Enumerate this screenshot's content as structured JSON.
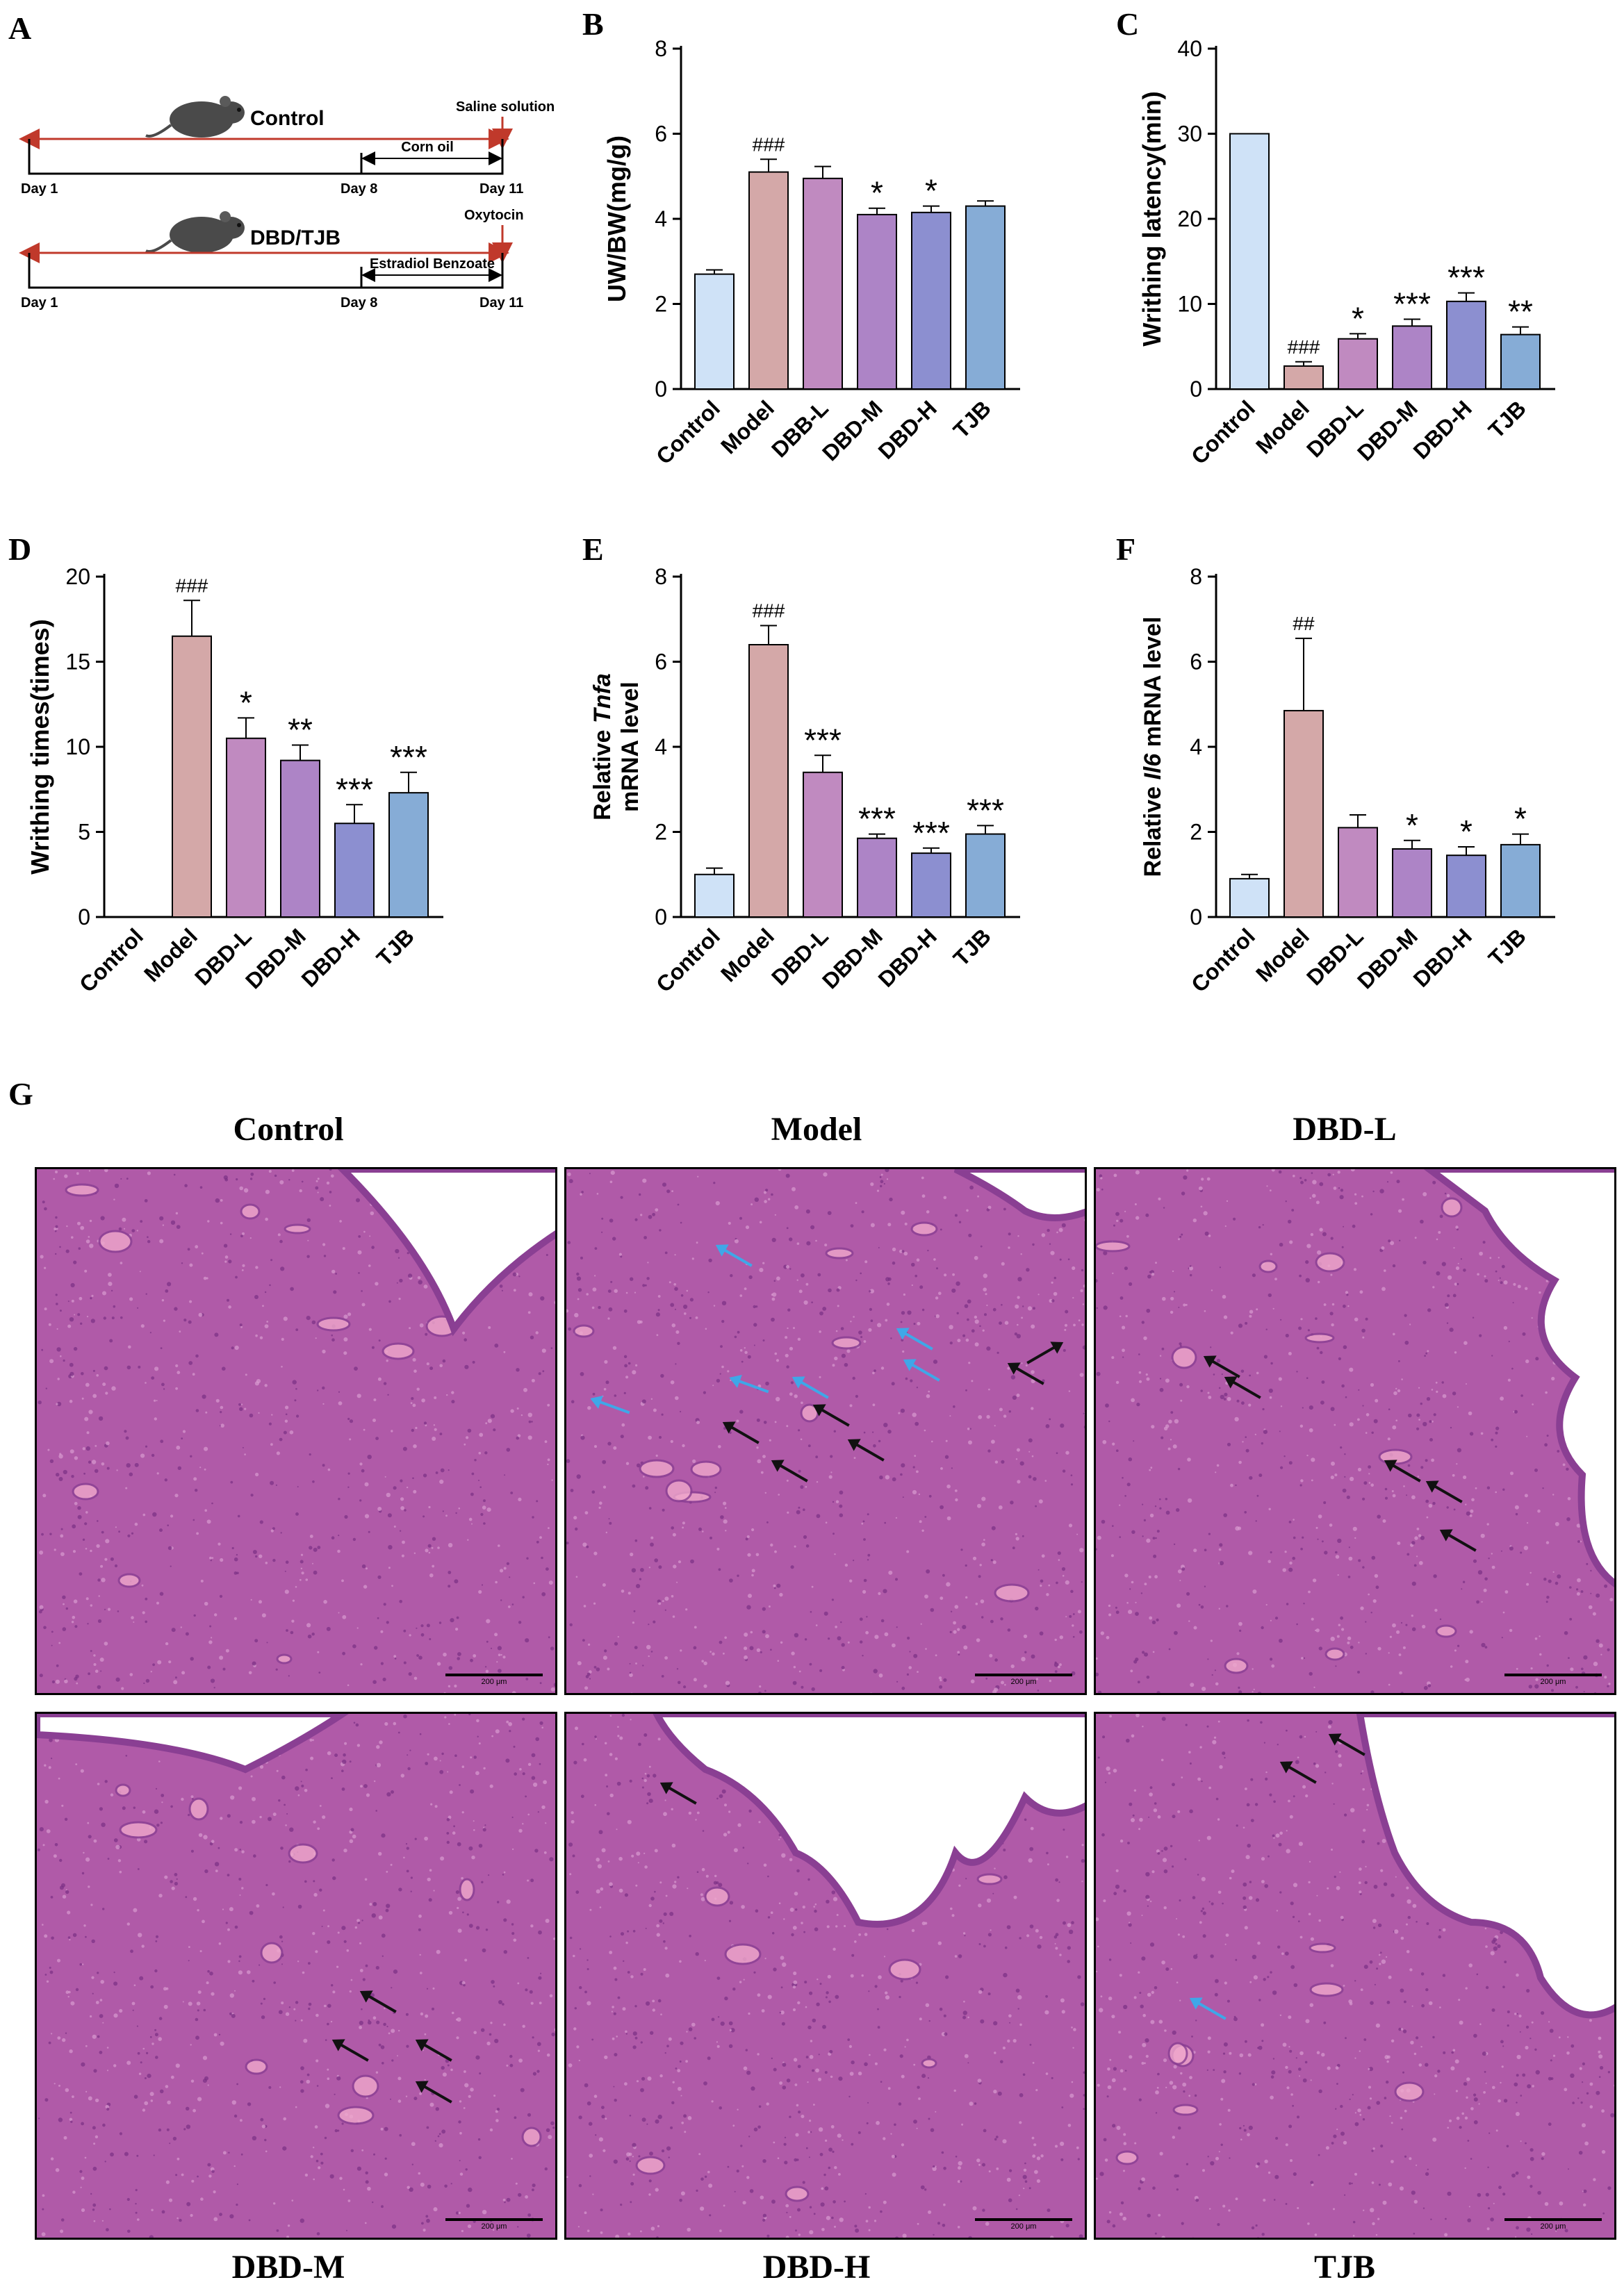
{
  "panels": {
    "A": "A",
    "B": "B",
    "C": "C",
    "D": "D",
    "E": "E",
    "F": "F",
    "G": "G"
  },
  "timeline": {
    "control": {
      "group": "Control",
      "top_label": "Saline solution",
      "treatment": "Corn oil",
      "day_start": "Day 1",
      "day_mid": "Day 8",
      "day_end": "Day 11"
    },
    "dbd": {
      "group": "DBD/TJB",
      "top_label": "Oxytocin",
      "treatment": "Estradiol Benzoate",
      "day_start": "Day 1",
      "day_mid": "Day 8",
      "day_end": "Day 11"
    },
    "colors": {
      "arrow": "#c0392b",
      "line": "#000000"
    }
  },
  "bar_colors": [
    "#cfe2f7",
    "#d4a8a8",
    "#c08ac0",
    "#ad84c6",
    "#8c8fd0",
    "#86acd6"
  ],
  "chart_data": [
    {
      "id": "B",
      "type": "bar",
      "categories": [
        "Control",
        "Model",
        "DBB-L",
        "DBD-M",
        "DBD-H",
        "TJB"
      ],
      "values": [
        2.7,
        5.1,
        4.95,
        4.1,
        4.15,
        4.3
      ],
      "errors": [
        0.1,
        0.3,
        0.28,
        0.15,
        0.15,
        0.12
      ],
      "annotations": [
        "",
        "###",
        "",
        "*",
        "*",
        ""
      ],
      "ylabel": "UW/BW(mg/g)",
      "ylim": [
        0,
        8
      ],
      "yticks": [
        0,
        2,
        4,
        6,
        8
      ]
    },
    {
      "id": "C",
      "type": "bar",
      "categories": [
        "Control",
        "Model",
        "DBD-L",
        "DBD-M",
        "DBD-H",
        "TJB"
      ],
      "values": [
        30,
        2.7,
        5.9,
        7.4,
        10.3,
        6.4
      ],
      "errors": [
        0,
        0.5,
        0.6,
        0.8,
        1.0,
        0.9
      ],
      "annotations": [
        "",
        "###",
        "*",
        "***",
        "***",
        "**"
      ],
      "ylabel": "Writhing latency(min)",
      "ylim": [
        0,
        40
      ],
      "yticks": [
        0,
        10,
        20,
        30,
        40
      ]
    },
    {
      "id": "D",
      "type": "bar",
      "categories": [
        "Control",
        "Model",
        "DBD-L",
        "DBD-M",
        "DBD-H",
        "TJB"
      ],
      "values": [
        0,
        16.5,
        10.5,
        9.2,
        5.5,
        7.3
      ],
      "errors": [
        0,
        2.1,
        1.2,
        0.9,
        1.1,
        1.2
      ],
      "annotations": [
        "",
        "###",
        "*",
        "**",
        "***",
        "***"
      ],
      "ylabel": "Writhing times(times)",
      "ylim": [
        0,
        20
      ],
      "yticks": [
        0,
        5,
        10,
        15,
        20
      ]
    },
    {
      "id": "E",
      "type": "bar",
      "categories": [
        "Control",
        "Model",
        "DBD-L",
        "DBD-M",
        "DBD-H",
        "TJB"
      ],
      "values": [
        1.0,
        6.4,
        3.4,
        1.85,
        1.5,
        1.95
      ],
      "errors": [
        0.15,
        0.45,
        0.4,
        0.1,
        0.12,
        0.2
      ],
      "annotations": [
        "",
        "###",
        "***",
        "***",
        "***",
        "***"
      ],
      "ylabel_line1_prefix": "Relative ",
      "ylabel_line1_italic": "Tnfa",
      "ylabel_line2": "mRNA level",
      "ylim": [
        0,
        8
      ],
      "yticks": [
        0,
        2,
        4,
        6,
        8
      ]
    },
    {
      "id": "F",
      "type": "bar",
      "categories": [
        "Control",
        "Model",
        "DBD-L",
        "DBD-M",
        "DBD-H",
        "TJB"
      ],
      "values": [
        0.9,
        4.85,
        2.1,
        1.6,
        1.45,
        1.7
      ],
      "errors": [
        0.1,
        1.7,
        0.3,
        0.2,
        0.2,
        0.25
      ],
      "annotations": [
        "",
        "##",
        "",
        "*",
        "*",
        "*"
      ],
      "ylabel_prefix": "Relative ",
      "ylabel_italic": "Il6",
      "ylabel_suffix": " mRNA level",
      "ylim": [
        0,
        8
      ],
      "yticks": [
        0,
        2,
        4,
        6,
        8
      ]
    }
  ],
  "histology": {
    "titles": [
      "Control",
      "Model",
      "DBD-L",
      "DBD-M",
      "DBD-H",
      "TJB"
    ],
    "scale_label": "200 μm",
    "colors": {
      "stroma": "#b05aa8",
      "tissue": "#c77ec0",
      "epithelium": "#8a3f93",
      "lumen": "#ffffff",
      "blood": "#f0a8cc"
    }
  }
}
